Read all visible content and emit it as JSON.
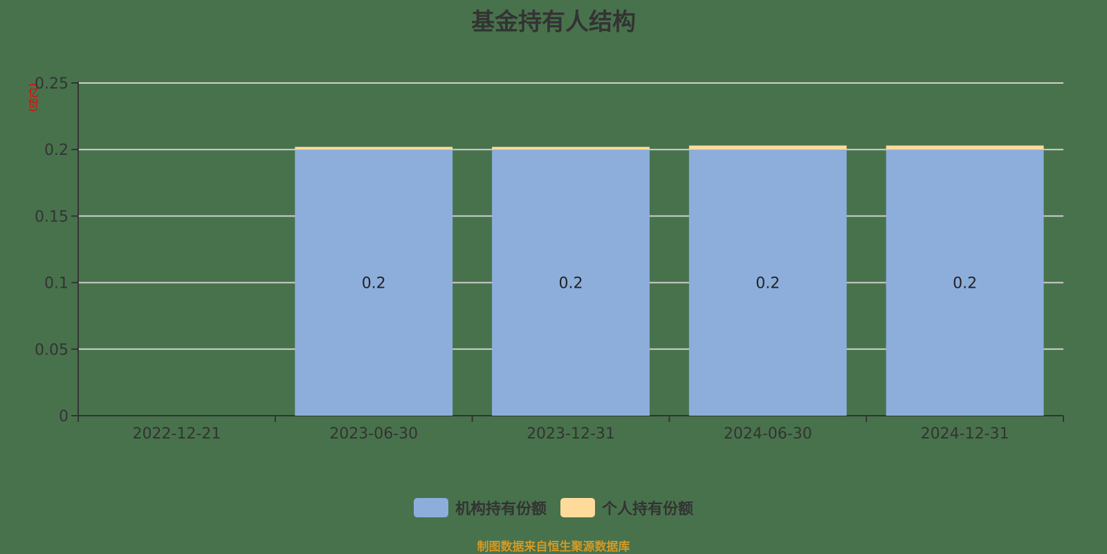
{
  "title": "基金持有人结构",
  "unit_label": "(亿份)",
  "source": "制图数据来自恒生聚源数据库",
  "colors": {
    "institutional": "#8daedb",
    "personal": "#fedb9b",
    "grid": "#d0d0d0",
    "axis": "#333333"
  },
  "legend": [
    {
      "label": "机构持有份额",
      "color": "#8daedb"
    },
    {
      "label": "个人持有份额",
      "color": "#fedb9b"
    }
  ],
  "chart_data": {
    "type": "bar",
    "stacked": true,
    "title": "基金持有人结构",
    "xlabel": "",
    "ylabel": "(亿份)",
    "ylim": [
      0,
      0.25
    ],
    "yticks": [
      0,
      0.05,
      0.1,
      0.15,
      0.2,
      0.25
    ],
    "categories": [
      "2022-12-21",
      "2023-06-30",
      "2023-12-31",
      "2024-06-30",
      "2024-12-31"
    ],
    "series": [
      {
        "name": "机构持有份额",
        "values": [
          0,
          0.2,
          0.2,
          0.2,
          0.2
        ],
        "labels": [
          "",
          "0.2",
          "0.2",
          "0.2",
          "0.2"
        ]
      },
      {
        "name": "个人持有份额",
        "values": [
          0,
          0.002,
          0.002,
          0.003,
          0.003
        ]
      }
    ],
    "grid": true,
    "legend_position": "bottom"
  }
}
